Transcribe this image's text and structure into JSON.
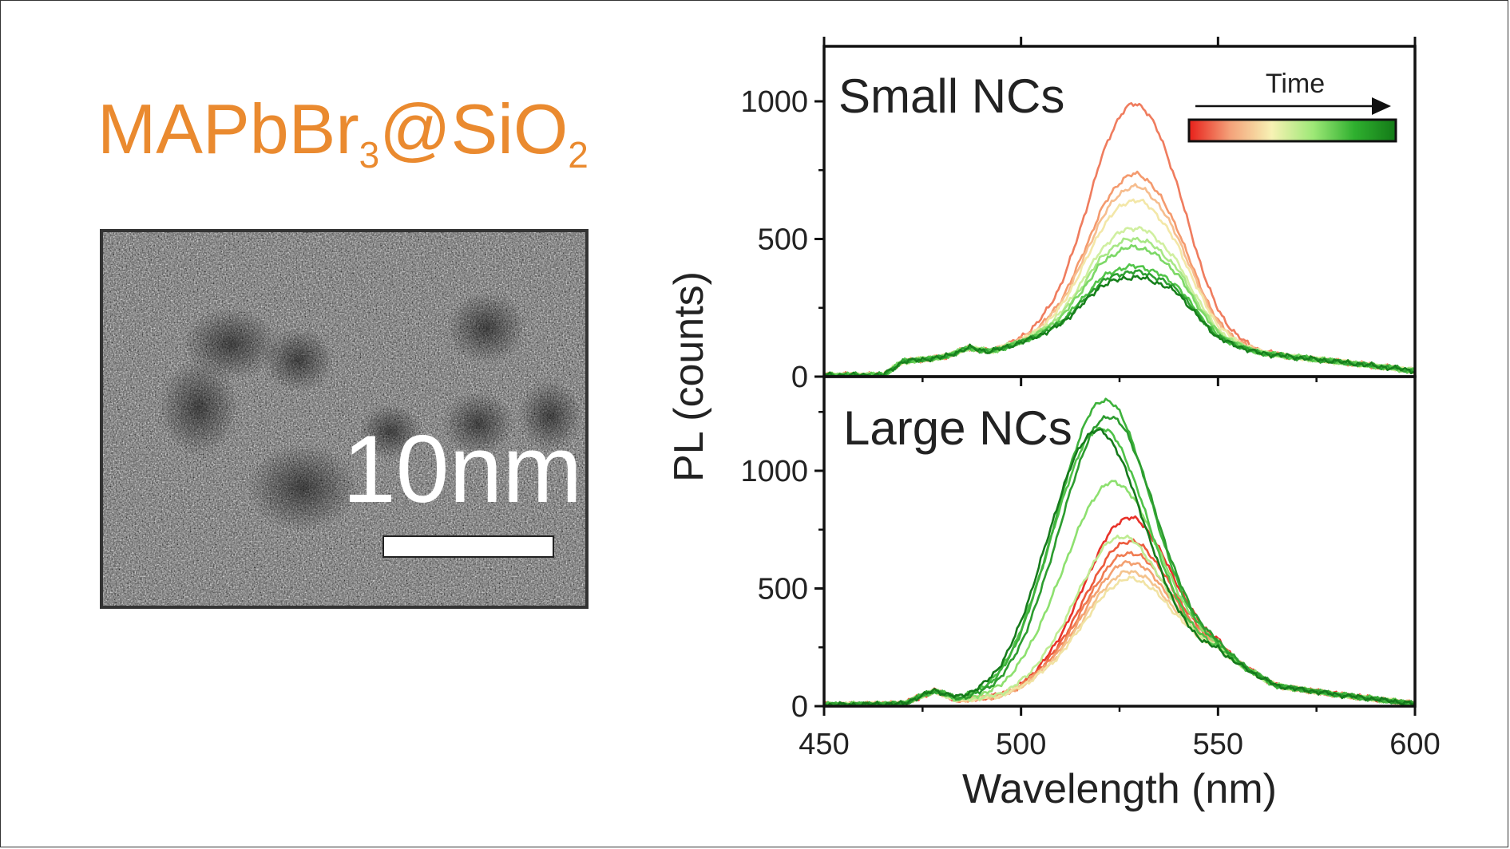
{
  "figure": {
    "title_main": "MAPbBr",
    "title_sub1": "3",
    "title_mid": "@SiO",
    "title_sub2": "2",
    "title_color": "#ea8a2f",
    "scale_bar_label": "10nm"
  },
  "chart_data": {
    "type": "line",
    "xlabel": "Wavelength (nm)",
    "ylabel": "PL (counts)",
    "xlim": [
      450,
      600
    ],
    "x_ticks": [
      450,
      500,
      550,
      600
    ],
    "legend": {
      "label": "Time",
      "colormap": [
        "#e8201a",
        "#f4a27a",
        "#f7f2b4",
        "#9ee877",
        "#2fb02f",
        "#137a17"
      ],
      "placement": "top-right"
    },
    "panels": [
      {
        "label": "Small NCs",
        "ylim": [
          0,
          1200
        ],
        "y_ticks": [
          0,
          500,
          1000
        ],
        "baseline": [
          [
            450,
            5
          ],
          [
            465,
            5
          ],
          [
            470,
            55
          ],
          [
            480,
            70
          ],
          [
            487,
            105
          ],
          [
            492,
            90
          ],
          [
            500,
            120
          ],
          [
            510,
            160
          ],
          [
            520,
            230
          ],
          [
            540,
            220
          ],
          [
            550,
            120
          ],
          [
            560,
            85
          ],
          [
            580,
            55
          ],
          [
            595,
            30
          ],
          [
            600,
            20
          ]
        ],
        "series": [
          {
            "color": "#ef7c5e",
            "peak_x": 529,
            "peak_y": 990
          },
          {
            "color": "#f49a6e",
            "peak_x": 529,
            "peak_y": 735
          },
          {
            "color": "#f6bd8e",
            "peak_x": 529,
            "peak_y": 690
          },
          {
            "color": "#f3e7a8",
            "peak_x": 529,
            "peak_y": 640
          },
          {
            "color": "#d0efa0",
            "peak_x": 529,
            "peak_y": 540
          },
          {
            "color": "#a7e785",
            "peak_x": 529,
            "peak_y": 500
          },
          {
            "color": "#7cd866",
            "peak_x": 529,
            "peak_y": 470
          },
          {
            "color": "#52c54a",
            "peak_x": 529,
            "peak_y": 400
          },
          {
            "color": "#2ea032",
            "peak_x": 529,
            "peak_y": 380
          },
          {
            "color": "#17801c",
            "peak_x": 529,
            "peak_y": 360
          }
        ]
      },
      {
        "label": "Large NCs",
        "ylim": [
          0,
          1400
        ],
        "y_ticks": [
          0,
          500,
          1000
        ],
        "baseline": [
          [
            450,
            5
          ],
          [
            470,
            10
          ],
          [
            478,
            65
          ],
          [
            484,
            25
          ],
          [
            495,
            40
          ],
          [
            505,
            90
          ],
          [
            550,
            210
          ],
          [
            555,
            170
          ],
          [
            565,
            85
          ],
          [
            580,
            50
          ],
          [
            595,
            20
          ],
          [
            600,
            10
          ]
        ],
        "series": [
          {
            "color": "#e8322a",
            "peak_x": 527,
            "peak_y": 800
          },
          {
            "color": "#ec5a3c",
            "peak_x": 527,
            "peak_y": 700
          },
          {
            "color": "#f07c52",
            "peak_x": 527,
            "peak_y": 650
          },
          {
            "color": "#f3a070",
            "peak_x": 527,
            "peak_y": 610
          },
          {
            "color": "#f4c48e",
            "peak_x": 527,
            "peak_y": 570
          },
          {
            "color": "#f1e3a4",
            "peak_x": 527,
            "peak_y": 540
          },
          {
            "color": "#bfec93",
            "peak_x": 525,
            "peak_y": 720
          },
          {
            "color": "#8de06f",
            "peak_x": 523,
            "peak_y": 950
          },
          {
            "color": "#4fc248",
            "peak_x": 520,
            "peak_y": 1180
          },
          {
            "color": "#3eb23c",
            "peak_x": 521,
            "peak_y": 1300
          },
          {
            "color": "#2c9c2f",
            "peak_x": 522,
            "peak_y": 1230
          },
          {
            "color": "#157a1b",
            "peak_x": 519,
            "peak_y": 1170
          }
        ]
      }
    ]
  }
}
